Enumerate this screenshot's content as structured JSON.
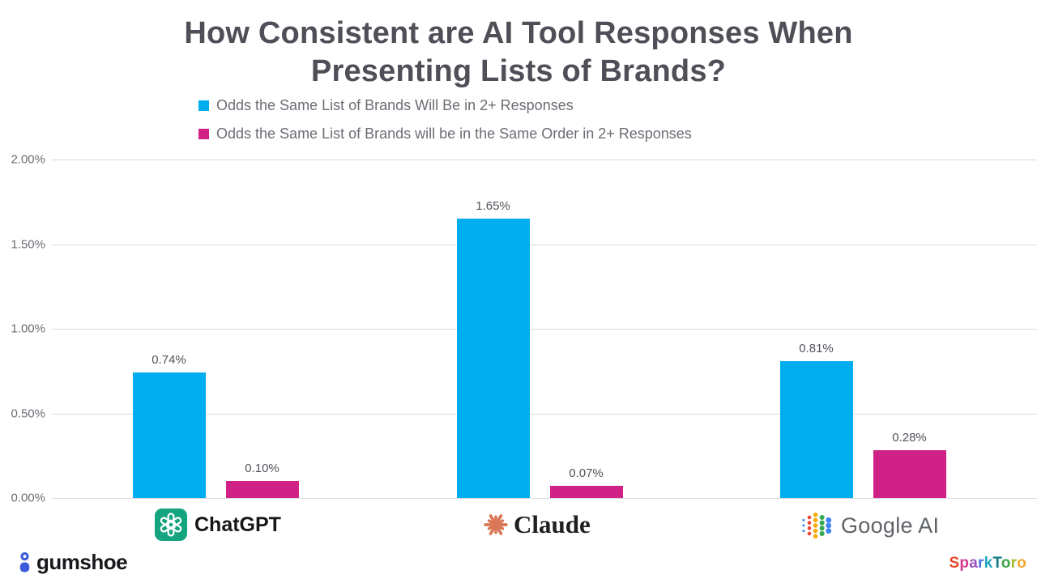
{
  "title": {
    "line1": "How Consistent are AI Tool Responses When",
    "line2": "Presenting Lists of Brands?"
  },
  "legend": [
    {
      "label": "Odds the Same List of Brands Will Be in 2+ Responses",
      "color": "#00aeef"
    },
    {
      "label": "Odds the Same List of Brands will be in the Same Order in 2+ Responses",
      "color": "#d02186"
    }
  ],
  "chart_data": {
    "type": "bar",
    "categories": [
      "ChatGPT",
      "Claude",
      "Google AI"
    ],
    "series": [
      {
        "name": "Odds the Same List of Brands Will Be in 2+ Responses",
        "color": "#00aeef",
        "values": [
          0.74,
          1.65,
          0.81
        ],
        "labels": [
          "0.74%",
          "1.65%",
          "0.81%"
        ]
      },
      {
        "name": "Odds the Same List of Brands will be in the Same Order in 2+ Responses",
        "color": "#d02186",
        "values": [
          0.1,
          0.07,
          0.28
        ],
        "labels": [
          "0.10%",
          "0.07%",
          "0.28%"
        ]
      }
    ],
    "title": "How Consistent are AI Tool Responses When Presenting Lists of Brands?",
    "xlabel": "",
    "ylabel": "",
    "ylim": [
      0,
      2.0
    ],
    "y_tick_values": [
      0,
      0.5,
      1.0,
      1.5,
      2.0
    ],
    "y_ticks": [
      "0.00%",
      "0.50%",
      "1.00%",
      "1.50%",
      "2.00%"
    ],
    "grid": true,
    "legend_position": "top"
  },
  "brands": {
    "chatgpt": "ChatGPT",
    "claude": "Claude",
    "google": "Google AI"
  },
  "footer": {
    "gumshoe_text": "gumshoe",
    "sparktoro_letters": [
      {
        "ch": "S",
        "color": "#e8452c"
      },
      {
        "ch": "p",
        "color": "#d6368f"
      },
      {
        "ch": "a",
        "color": "#9b51c0"
      },
      {
        "ch": "r",
        "color": "#4a6fdc"
      },
      {
        "ch": "k",
        "color": "#22a7bf"
      },
      {
        "ch": "T",
        "color": "#0f7b83"
      },
      {
        "ch": "o",
        "color": "#3da84a"
      },
      {
        "ch": "r",
        "color": "#a4b82e"
      },
      {
        "ch": "o",
        "color": "#f2a52e"
      }
    ]
  },
  "colors": {
    "bar_blue": "#00aeef",
    "bar_pink": "#d02186",
    "grid": "#dadada",
    "title_text": "#4f4f58",
    "axis_text": "#6c6c75",
    "chatgpt_green": "#14a47f",
    "claude_coral": "#d97757",
    "gumshoe_blue": "#3b5bdb",
    "google_blue": "#4285f4",
    "google_red": "#ea4335",
    "google_yellow": "#f9ab00",
    "google_green": "#34a853"
  }
}
